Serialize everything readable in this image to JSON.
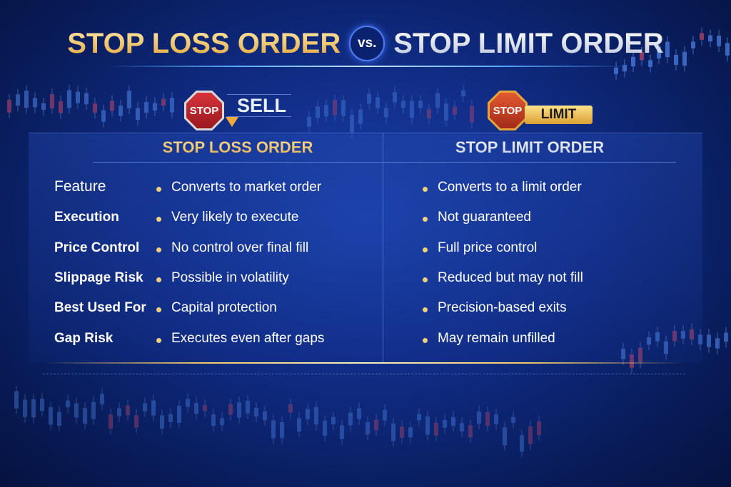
{
  "title": {
    "left": "STOP LOSS ORDER",
    "vs": "vs.",
    "right": "STOP LIMIT ORDER"
  },
  "icons": {
    "left_sign": "STOP",
    "left_tag": "SELL",
    "right_sign": "STOP",
    "right_tag": "LIMIT"
  },
  "columns": {
    "left": "STOP LOSS ORDER",
    "right": "STOP LIMIT ORDER"
  },
  "rows": [
    {
      "feature": "Feature",
      "stop_loss": "Converts to market order",
      "stop_limit": "Converts to a limit order"
    },
    {
      "feature": "Execution",
      "stop_loss": "Very likely to execute",
      "stop_limit": "Not guaranteed"
    },
    {
      "feature": "Price Control",
      "stop_loss": "No control over final fill",
      "stop_limit": "Full price control"
    },
    {
      "feature": "Slippage Risk",
      "stop_loss": "Possible in volatility",
      "stop_limit": "Reduced but may not fill"
    },
    {
      "feature": "Best Used For",
      "stop_loss": "Capital protection",
      "stop_limit": "Precision-based exits"
    },
    {
      "feature": "Gap Risk",
      "stop_loss": "Executes even after gaps",
      "stop_limit": "May remain unfilled"
    }
  ],
  "colors": {
    "gold": "#f2c766",
    "background": "#0f2a80",
    "stop_red": "#c8282e"
  }
}
